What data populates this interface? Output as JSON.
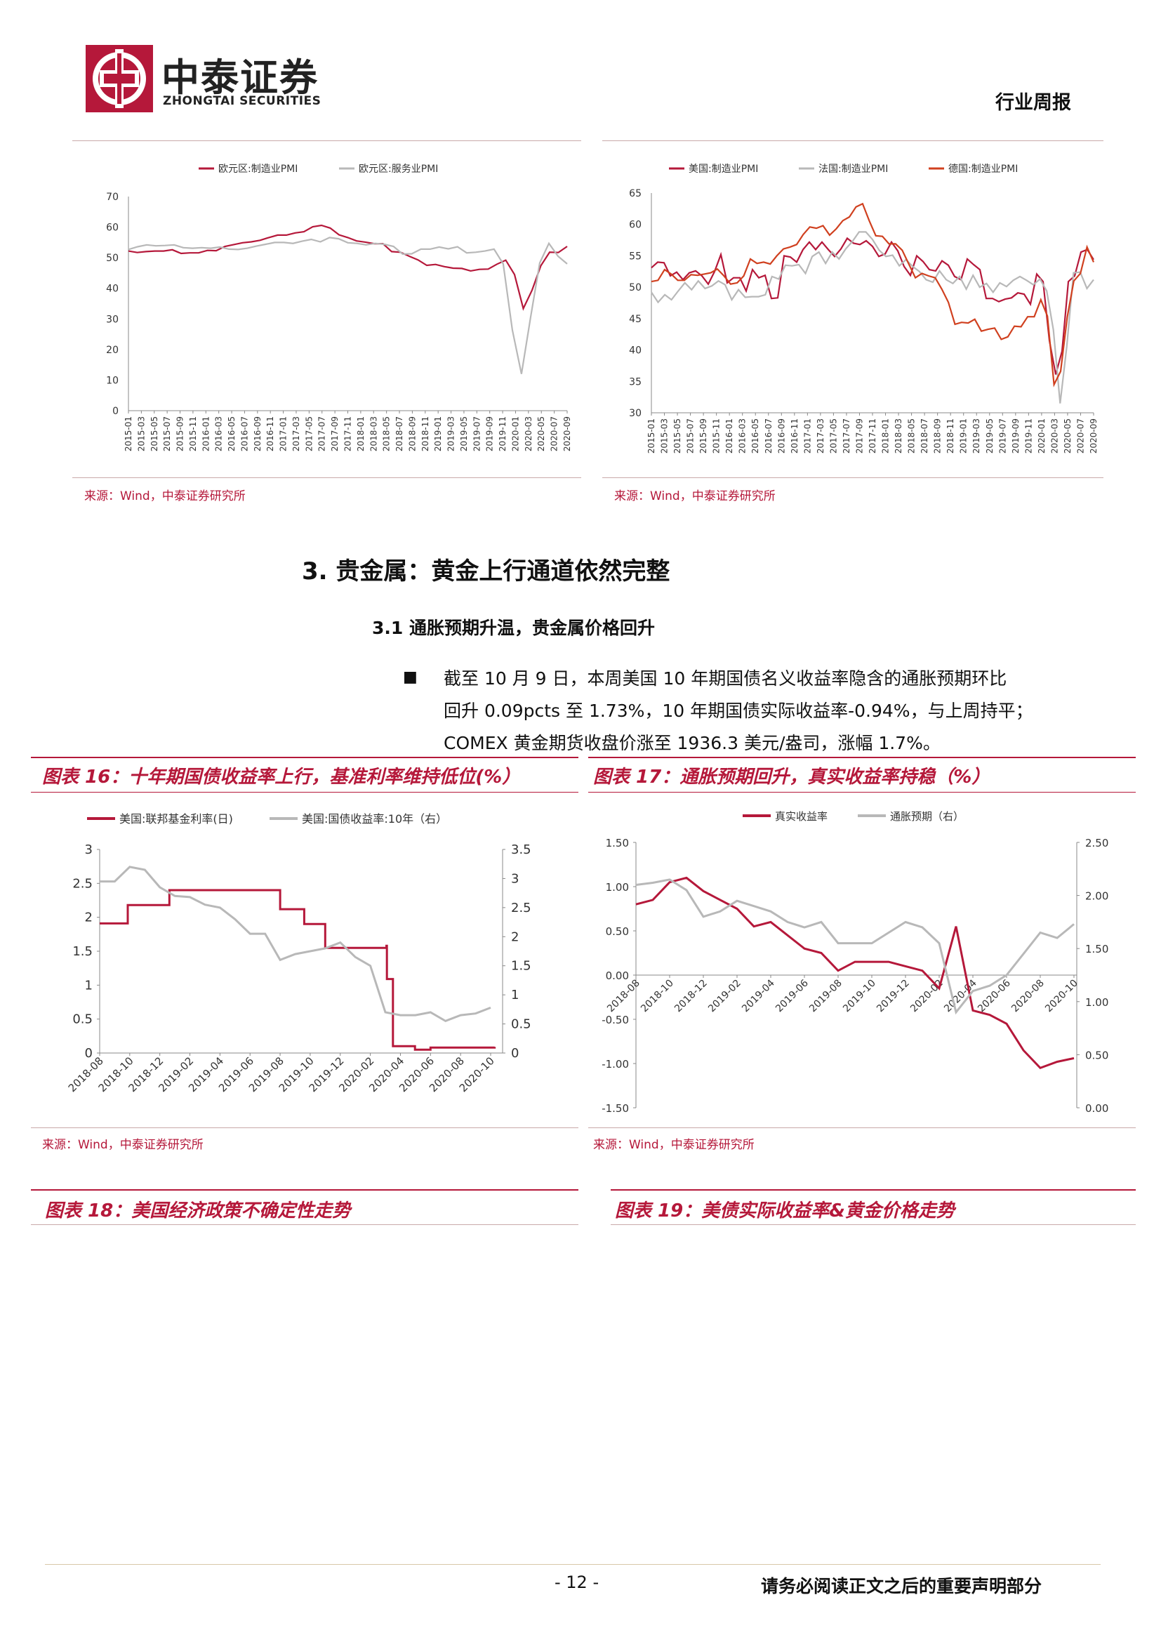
{
  "header": {
    "company_cn": "中泰证券",
    "company_en": "ZHONGTAI SECURITIES",
    "report_type": "行业周报"
  },
  "top_charts": {
    "left": {
      "source": "来源：Wind，中泰证券研究所",
      "chart_data": {
        "type": "line",
        "series": [
          {
            "name": "欧元区:制造业PMI",
            "color": "#b5183a",
            "values": [
              52.2,
              51.7,
              52.0,
              52.2,
              52.2,
              52.6,
              51.4,
              51.6,
              51.6,
              52.4,
              52.3,
              53.7,
              54.3,
              54.9,
              55.2,
              55.7,
              56.6,
              57.4,
              57.4,
              58.1,
              58.5,
              60.1,
              60.6,
              59.7,
              57.5,
              56.6,
              55.5,
              55.1,
              54.6,
              54.6,
              52.0,
              51.8,
              50.5,
              49.3,
              47.5,
              47.8,
              47.1,
              46.6,
              46.5,
              45.7,
              46.2,
              46.3,
              47.9,
              49.2,
              44.5,
              33.4,
              39.4,
              47.4,
              51.8,
              51.7,
              53.7
            ]
          },
          {
            "name": "欧元区:服务业PMI",
            "color": "#b8b8b8",
            "values": [
              52.7,
              53.6,
              54.2,
              53.9,
              54.0,
              54.2,
              53.3,
              53.1,
              53.3,
              53.1,
              53.5,
              52.8,
              52.7,
              53.1,
              53.8,
              54.4,
              55.0,
              55.0,
              54.7,
              55.4,
              56.0,
              55.2,
              56.6,
              56.2,
              54.9,
              54.7,
              54.2,
              54.7,
              54.4,
              53.7,
              51.2,
              51.3,
              52.8,
              52.8,
              53.5,
              52.9,
              53.6,
              51.6,
              51.8,
              52.2,
              52.8,
              48.0,
              26.4,
              12.0,
              30.5,
              48.3,
              54.7,
              50.5,
              48.0
            ]
          }
        ],
        "x_ticks": [
          "2015-01",
          "2015-03",
          "2015-05",
          "2015-07",
          "2015-09",
          "2015-11",
          "2016-01",
          "2016-03",
          "2016-05",
          "2016-07",
          "2016-09",
          "2016-11",
          "2017-01",
          "2017-03",
          "2017-05",
          "2017-07",
          "2017-09",
          "2017-11",
          "2018-01",
          "2018-03",
          "2018-05",
          "2018-07",
          "2018-09",
          "2018-11",
          "2019-01",
          "2019-03",
          "2019-05",
          "2019-07",
          "2019-09",
          "2019-11",
          "2020-01",
          "2020-03",
          "2020-05",
          "2020-07",
          "2020-09"
        ],
        "y_ticks": [
          "0",
          "10",
          "20",
          "30",
          "40",
          "50",
          "60",
          "70"
        ],
        "ylim": [
          0,
          70
        ]
      }
    },
    "right": {
      "source": "来源：Wind，中泰证券研究所",
      "chart_data": {
        "type": "line",
        "series": [
          {
            "name": "美国:制造业PMI",
            "color": "#b5183a",
            "values": [
              53.1,
              54.0,
              53.9,
              51.8,
              52.4,
              51.2,
              52.3,
              52.6,
              51.8,
              50.5,
              52.5,
              55.2,
              50.7,
              51.5,
              51.5,
              49.4,
              52.8,
              51.5,
              51.9,
              48.2,
              48.3,
              55.0,
              54.8,
              54.0,
              56.0,
              57.2,
              56.0,
              57.2,
              56.0,
              54.9,
              56.1,
              57.8,
              57.0,
              56.8,
              57.4,
              56.5,
              54.9,
              55.3,
              57.2,
              55.8,
              53.3,
              51.9,
              55.0,
              54.1,
              52.8,
              52.6,
              54.2,
              53.5,
              51.7,
              51.2,
              54.5,
              53.6,
              52.8,
              48.2,
              48.2,
              47.7,
              48.1,
              48.3,
              49.1,
              48.9,
              47.3,
              52.1,
              50.9,
              41.5,
              36.1,
              39.8,
              50.9,
              51.8,
              55.6,
              56.0,
              54.4
            ]
          },
          {
            "name": "法国:制造业PMI",
            "color": "#b8b8b8",
            "values": [
              49.2,
              47.6,
              48.8,
              48.0,
              49.4,
              50.7,
              49.6,
              51.0,
              49.8,
              50.2,
              51.0,
              50.4,
              48.0,
              49.6,
              48.4,
              48.5,
              48.5,
              48.8,
              51.7,
              51.3,
              53.5,
              53.4,
              53.6,
              52.2,
              54.9,
              55.6,
              53.8,
              55.6,
              54.5,
              56.1,
              57.3,
              58.8,
              58.8,
              57.6,
              55.9,
              54.9,
              55.1,
              53.4,
              54.4,
              53.3,
              52.5,
              51.2,
              50.8,
              52.6,
              51.2,
              50.6,
              51.7,
              49.7,
              51.9,
              50.0,
              50.6,
              49.2,
              50.7,
              50.1,
              51.1,
              51.7,
              51.1,
              50.4,
              51.3,
              49.4,
              43.2,
              31.5,
              40.6,
              52.3,
              52.4,
              49.8,
              51.2
            ]
          },
          {
            "name": "德国:制造业PMI",
            "color": "#d0401f",
            "values": [
              50.9,
              51.1,
              52.8,
              52.1,
              51.1,
              51.1,
              52.0,
              51.9,
              52.1,
              52.3,
              52.9,
              51.8,
              50.5,
              50.7,
              51.8,
              54.5,
              53.8,
              54.0,
              53.7,
              55.0,
              56.1,
              56.4,
              56.8,
              58.4,
              59.6,
              59.4,
              59.8,
              58.3,
              59.3,
              60.6,
              61.2,
              62.8,
              63.3,
              60.6,
              58.2,
              58.1,
              56.9,
              56.9,
              55.9,
              53.7,
              51.5,
              52.2,
              51.8,
              51.5,
              49.7,
              47.6,
              44.1,
              44.4,
              44.3,
              44.9,
              43.0,
              43.3,
              43.5,
              41.7,
              42.1,
              43.8,
              43.7,
              45.3,
              45.3,
              48.0,
              45.4,
              34.5,
              36.6,
              45.2,
              51.0,
              52.2,
              56.4,
              54.0
            ]
          }
        ],
        "x_ticks": [
          "2015-01",
          "2015-03",
          "2015-05",
          "2015-07",
          "2015-09",
          "2015-11",
          "2016-01",
          "2016-03",
          "2016-05",
          "2016-07",
          "2016-09",
          "2016-11",
          "2017-01",
          "2017-03",
          "2017-05",
          "2017-07",
          "2017-09",
          "2017-11",
          "2018-01",
          "2018-03",
          "2018-05",
          "2018-07",
          "2018-09",
          "2018-11",
          "2019-01",
          "2019-03",
          "2019-05",
          "2019-07",
          "2019-09",
          "2019-11",
          "2020-01",
          "2020-03",
          "2020-05",
          "2020-07",
          "2020-09"
        ],
        "y_ticks": [
          "30",
          "35",
          "40",
          "45",
          "50",
          "55",
          "60",
          "65"
        ],
        "ylim": [
          30,
          65
        ]
      }
    }
  },
  "section": {
    "heading": "3. 贵金属：黄金上行通道依然完整",
    "subheading": "3.1 通胀预期升温，贵金属价格回升",
    "bullet": "■",
    "paragraph_lines": [
      "截至 10 月 9 日，本周美国 10 年期国债名义收益率隐含的通胀预期环比",
      "回升 0.09pcts 至 1.73%，10 年期国债实际收益率-0.94%，与上周持平；",
      "COMEX 黄金期货收盘价涨至 1936.3 美元/盎司，涨幅 1.7%。"
    ]
  },
  "fig16": {
    "title": "图表 16：十年期国债收益率上行，基准利率维持低位(%）",
    "source": "来源：Wind，中泰证券研究所",
    "chart_data": {
      "type": "line",
      "series": [
        {
          "name": "美国:联邦基金利率(日)",
          "color": "#b5183a",
          "axis": "left",
          "points": [
            [
              "2018-08",
              1.91
            ],
            [
              "2018-09",
              1.91
            ],
            [
              "2018-09-27",
              2.18
            ],
            [
              "2018-12-20",
              2.4
            ],
            [
              "2019-07-31",
              2.4
            ],
            [
              "2019-08-01",
              2.12
            ],
            [
              "2019-09-19",
              1.9
            ],
            [
              "2019-10-31",
              1.55
            ],
            [
              "2020-03-03",
              1.58
            ],
            [
              "2020-03-04",
              1.09
            ],
            [
              "2020-03-16",
              0.1
            ],
            [
              "2020-04-30",
              0.05
            ],
            [
              "2020-06-01",
              0.08
            ],
            [
              "2020-10-09",
              0.09
            ]
          ]
        },
        {
          "name": "美国:国债收益率:10年（右）",
          "color": "#b8b8b8",
          "axis": "right",
          "points": [
            [
              "2018-08",
              2.95
            ],
            [
              "2018-09",
              2.95
            ],
            [
              "2018-10",
              3.2
            ],
            [
              "2018-11",
              3.15
            ],
            [
              "2018-12",
              2.85
            ],
            [
              "2019-01",
              2.7
            ],
            [
              "2019-02",
              2.68
            ],
            [
              "2019-03",
              2.55
            ],
            [
              "2019-04",
              2.5
            ],
            [
              "2019-05",
              2.3
            ],
            [
              "2019-06",
              2.05
            ],
            [
              "2019-07",
              2.05
            ],
            [
              "2019-08",
              1.6
            ],
            [
              "2019-09",
              1.7
            ],
            [
              "2019-10",
              1.75
            ],
            [
              "2019-11",
              1.8
            ],
            [
              "2019-12",
              1.9
            ],
            [
              "2020-01",
              1.65
            ],
            [
              "2020-02",
              1.5
            ],
            [
              "2020-03",
              0.7
            ],
            [
              "2020-04",
              0.65
            ],
            [
              "2020-05",
              0.65
            ],
            [
              "2020-06",
              0.7
            ],
            [
              "2020-07",
              0.55
            ],
            [
              "2020-08",
              0.65
            ],
            [
              "2020-09",
              0.68
            ],
            [
              "2020-10",
              0.78
            ]
          ]
        }
      ],
      "x_ticks": [
        "2018-08",
        "2018-10",
        "2018-12",
        "2019-02",
        "2019-04",
        "2019-06",
        "2019-08",
        "2019-10",
        "2019-12",
        "2020-02",
        "2020-04",
        "2020-06",
        "2020-08",
        "2020-10"
      ],
      "y_left_ticks": [
        "0",
        "0.5",
        "1",
        "1.5",
        "2",
        "2.5",
        "3"
      ],
      "y_right_ticks": [
        "0",
        "0.5",
        "1",
        "1.5",
        "2",
        "2.5",
        "3",
        "3.5"
      ],
      "ylim_left": [
        0,
        3
      ],
      "ylim_right": [
        0,
        3.5
      ]
    }
  },
  "fig17": {
    "title": "图表 17：通胀预期回升，真实收益率持稳（%）",
    "source": "来源：Wind，中泰证券研究所",
    "chart_data": {
      "type": "line",
      "series": [
        {
          "name": "真实收益率",
          "color": "#b5183a",
          "axis": "left",
          "points": [
            [
              "2018-08",
              0.8
            ],
            [
              "2018-09",
              0.85
            ],
            [
              "2018-10",
              1.05
            ],
            [
              "2018-11",
              1.1
            ],
            [
              "2018-12",
              0.95
            ],
            [
              "2019-01",
              0.85
            ],
            [
              "2019-02",
              0.75
            ],
            [
              "2019-03",
              0.55
            ],
            [
              "2019-04",
              0.6
            ],
            [
              "2019-05",
              0.45
            ],
            [
              "2019-06",
              0.3
            ],
            [
              "2019-07",
              0.25
            ],
            [
              "2019-08",
              0.05
            ],
            [
              "2019-09",
              0.15
            ],
            [
              "2019-10",
              0.15
            ],
            [
              "2019-11",
              0.15
            ],
            [
              "2019-12",
              0.1
            ],
            [
              "2020-01",
              0.05
            ],
            [
              "2020-02",
              -0.15
            ],
            [
              "2020-03",
              0.55
            ],
            [
              "2020-04",
              -0.4
            ],
            [
              "2020-05",
              -0.45
            ],
            [
              "2020-06",
              -0.55
            ],
            [
              "2020-07",
              -0.85
            ],
            [
              "2020-08",
              -1.05
            ],
            [
              "2020-09",
              -0.98
            ],
            [
              "2020-10",
              -0.94
            ]
          ]
        },
        {
          "name": "通胀预期（右）",
          "color": "#b8b8b8",
          "axis": "right",
          "points": [
            [
              "2018-08",
              2.1
            ],
            [
              "2018-09",
              2.12
            ],
            [
              "2018-10",
              2.15
            ],
            [
              "2018-11",
              2.05
            ],
            [
              "2018-12",
              1.8
            ],
            [
              "2019-01",
              1.85
            ],
            [
              "2019-02",
              1.95
            ],
            [
              "2019-03",
              1.9
            ],
            [
              "2019-04",
              1.85
            ],
            [
              "2019-05",
              1.75
            ],
            [
              "2019-06",
              1.7
            ],
            [
              "2019-07",
              1.75
            ],
            [
              "2019-08",
              1.55
            ],
            [
              "2019-09",
              1.55
            ],
            [
              "2019-10",
              1.55
            ],
            [
              "2019-11",
              1.65
            ],
            [
              "2019-12",
              1.75
            ],
            [
              "2020-01",
              1.7
            ],
            [
              "2020-02",
              1.55
            ],
            [
              "2020-03",
              0.9
            ],
            [
              "2020-04",
              1.1
            ],
            [
              "2020-05",
              1.15
            ],
            [
              "2020-06",
              1.25
            ],
            [
              "2020-07",
              1.45
            ],
            [
              "2020-08",
              1.65
            ],
            [
              "2020-09",
              1.6
            ],
            [
              "2020-10",
              1.73
            ]
          ]
        }
      ],
      "x_ticks": [
        "2018-08",
        "2018-10",
        "2018-12",
        "2019-02",
        "2019-04",
        "2019-06",
        "2019-08",
        "2019-10",
        "2019-12",
        "2020-02",
        "2020-04",
        "2020-06",
        "2020-08",
        "2020-10"
      ],
      "y_left_ticks": [
        "-1.50",
        "-1.00",
        "-0.50",
        "0.00",
        "0.50",
        "1.00",
        "1.50"
      ],
      "y_right_ticks": [
        "0.00",
        "0.50",
        "1.00",
        "1.50",
        "2.00",
        "2.50"
      ],
      "ylim_left": [
        -1.5,
        1.5
      ],
      "ylim_right": [
        0,
        2.5
      ]
    }
  },
  "fig18": {
    "title": "图表 18：美国经济政策不确定性走势"
  },
  "fig19": {
    "title": "图表 19：美债实际收益率&黄金价格走势"
  },
  "footer": {
    "page_number": "- 12 -",
    "disclaimer": "请务必阅读正文之后的重要声明部分"
  }
}
